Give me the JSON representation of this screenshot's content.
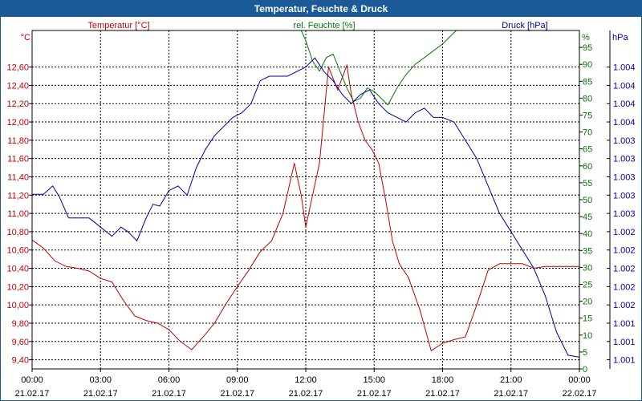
{
  "window": {
    "title": "Temperatur, Feuchte & Druck"
  },
  "colors": {
    "temperature": "#c00000",
    "humidity": "#007a00",
    "pressure": "#00009c",
    "titlebar": "#1a5a99",
    "grid": "#000000"
  },
  "chart_data": {
    "type": "line",
    "title": "Temperatur, Feuchte & Druck",
    "grid": true,
    "x_ticks": [
      {
        "time": "00:00",
        "date": "21.02.17"
      },
      {
        "time": "03:00",
        "date": "21.02.17"
      },
      {
        "time": "06:00",
        "date": "21.02.17"
      },
      {
        "time": "09:00",
        "date": "21.02.17"
      },
      {
        "time": "12:00",
        "date": "21.02.17"
      },
      {
        "time": "15:00",
        "date": "21.02.17"
      },
      {
        "time": "18:00",
        "date": "21.02.17"
      },
      {
        "time": "21:00",
        "date": "21.02.17"
      },
      {
        "time": "00:00",
        "date": "22.02.17"
      }
    ],
    "axes": {
      "temperature": {
        "label": "Temperatur [°C]",
        "unit": "°C",
        "range": [
          9.3,
          13.0
        ],
        "ticks": [
          "9,40",
          "9,60",
          "9,80",
          "10,00",
          "10,20",
          "10,40",
          "10,60",
          "10,80",
          "11,00",
          "11,20",
          "11,40",
          "11,60",
          "11,80",
          "12,00",
          "12,20",
          "12,40",
          "12,60"
        ]
      },
      "humidity": {
        "label": "rel. Feuchte [%]",
        "unit": "%",
        "range": [
          0,
          100
        ],
        "ticks": [
          "0",
          "5",
          "10",
          "15",
          "20",
          "25",
          "30",
          "35",
          "40",
          "45",
          "50",
          "55",
          "60",
          "65",
          "70",
          "75",
          "80",
          "85",
          "90",
          "95"
        ]
      },
      "pressure": {
        "label": "Druck [hPa]",
        "unit": "hPa",
        "ticks": [
          "1.001",
          "1.001",
          "1.001",
          "1.002",
          "1.002",
          "1.002",
          "1.002",
          "1.002",
          "1.003",
          "1.003",
          "1.003",
          "1.003",
          "1.003",
          "1.004",
          "1.004",
          "1.004",
          "1.004"
        ]
      }
    },
    "series": [
      {
        "name": "Temperatur [°C]",
        "axis": "temperature",
        "x": [
          0,
          0.5,
          1,
          1.5,
          2,
          2.5,
          3,
          3.5,
          4,
          4.5,
          5,
          5.5,
          6,
          6.5,
          7,
          7.5,
          8,
          8.5,
          9,
          9.5,
          10,
          10.5,
          11,
          11.5,
          11.8,
          12,
          12.3,
          12.6,
          13,
          13.4,
          13.8,
          14,
          14.3,
          14.6,
          14.9,
          15.2,
          15.5,
          15.8,
          16.1,
          16.5,
          17,
          17.5,
          18,
          18.5,
          19,
          19.5,
          20,
          20.5,
          21,
          21.5,
          22,
          22.5,
          23,
          23.5,
          24
        ],
        "y": [
          10.71,
          10.62,
          10.48,
          10.42,
          10.4,
          10.37,
          10.29,
          10.25,
          10.05,
          9.88,
          9.83,
          9.8,
          9.73,
          9.6,
          9.51,
          9.65,
          9.8,
          10.01,
          10.2,
          10.38,
          10.58,
          10.7,
          11.0,
          11.55,
          11.2,
          10.85,
          11.2,
          11.55,
          12.6,
          12.35,
          12.62,
          12.3,
          12.0,
          11.8,
          11.7,
          11.55,
          11.15,
          10.7,
          10.45,
          10.3,
          9.95,
          9.5,
          9.58,
          9.62,
          9.65,
          10.0,
          10.38,
          10.45,
          10.45,
          10.45,
          10.4,
          10.42,
          10.42,
          10.42,
          10.42
        ]
      },
      {
        "name": "rel. Feuchte [%]",
        "axis": "humidity",
        "x": [
          11.8,
          12.0,
          12.3,
          12.6,
          12.9,
          13.2,
          13.5,
          13.8,
          14.1,
          14.4,
          14.7,
          15.0,
          15.3,
          15.6,
          16.0,
          16.4,
          16.8,
          17.2,
          17.6,
          18.0,
          18.3,
          18.6
        ],
        "y": [
          100,
          97,
          91,
          88,
          92,
          93,
          88,
          83,
          79,
          80,
          83,
          82,
          80,
          78,
          83,
          87,
          90,
          92,
          94,
          96,
          98,
          100
        ]
      },
      {
        "name": "Druck [hPa]",
        "axis": "pressure",
        "x": [
          0,
          0.5,
          0.9,
          1.2,
          1.6,
          2.0,
          2.5,
          3.0,
          3.5,
          3.9,
          4.2,
          4.6,
          5.0,
          5.3,
          5.6,
          6.0,
          6.4,
          6.8,
          7.2,
          7.6,
          8.0,
          8.4,
          8.8,
          9.2,
          9.6,
          10.0,
          10.4,
          10.8,
          11.2,
          11.6,
          12.0,
          12.4,
          12.8,
          13.2,
          13.6,
          14.0,
          14.4,
          14.8,
          15.2,
          15.6,
          16.0,
          16.4,
          16.8,
          17.2,
          17.6,
          18.0,
          18.5,
          19.0,
          19.5,
          20.0,
          20.5,
          21.0,
          21.5,
          22.0,
          22.5,
          23.0,
          23.5,
          24.0
        ],
        "y": [
          11.21,
          11.21,
          11.3,
          11.18,
          10.95,
          10.95,
          10.95,
          10.85,
          10.75,
          10.85,
          10.8,
          10.7,
          10.95,
          11.1,
          11.08,
          11.25,
          11.3,
          11.2,
          11.5,
          11.7,
          11.85,
          11.95,
          12.05,
          12.1,
          12.2,
          12.45,
          12.5,
          12.5,
          12.5,
          12.55,
          12.6,
          12.7,
          12.55,
          12.45,
          12.3,
          12.2,
          12.3,
          12.35,
          12.2,
          12.1,
          12.05,
          12.0,
          12.1,
          12.15,
          12.05,
          12.05,
          12.0,
          11.8,
          11.6,
          11.3,
          11.0,
          10.8,
          10.6,
          10.4,
          10.1,
          9.7,
          9.45,
          9.43
        ]
      }
    ]
  }
}
